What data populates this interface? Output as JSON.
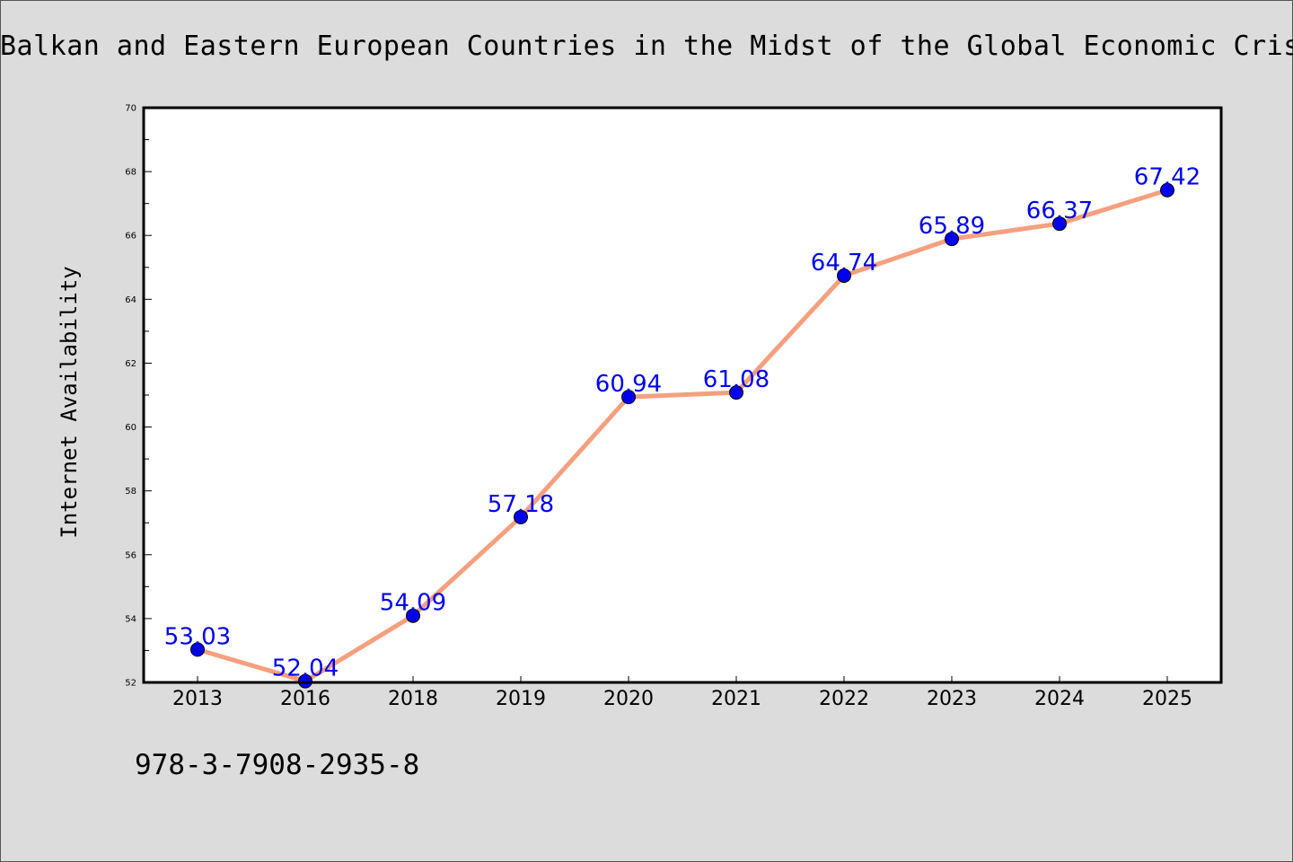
{
  "chart_data": {
    "type": "line",
    "title": "Balkan and Eastern European Countries in the Midst of the Global Economic Crisis",
    "xlabel": "",
    "ylabel": "Internet Availability",
    "categories": [
      "2013",
      "2016",
      "2018",
      "2019",
      "2020",
      "2021",
      "2022",
      "2023",
      "2024",
      "2025"
    ],
    "values": [
      53.03,
      52.04,
      54.09,
      57.18,
      60.94,
      61.08,
      64.74,
      65.89,
      66.37,
      67.42
    ],
    "value_labels": [
      "53.03",
      "52.04",
      "54.09",
      "57.18",
      "60.94",
      "61.08",
      "64.74",
      "65.89",
      "66.37",
      "67.42"
    ],
    "ylim": [
      52,
      70
    ],
    "yticks": [
      "52",
      "54",
      "56",
      "58",
      "60",
      "62",
      "64",
      "66",
      "68",
      "70"
    ],
    "grid": false,
    "line_color": "#f4a07e",
    "marker_color": "#0000ee",
    "label_color": "#0000ee"
  },
  "footer": {
    "code": "978-3-7908-2935-8"
  }
}
